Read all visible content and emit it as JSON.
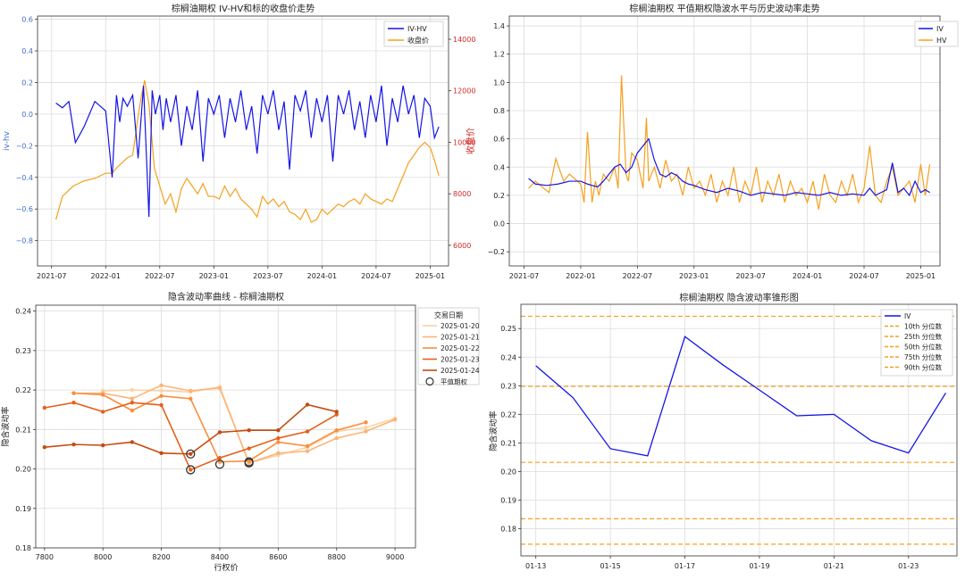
{
  "colors": {
    "iv_hv": "#1414e6",
    "close": "#f5a01e",
    "iv": "#1414e6",
    "hv": "#f5a01e",
    "left_axis": "#3c6ec8",
    "right_axis": "#d22828",
    "grid": "#dcdcdc",
    "spine": "#333333",
    "cone": "#f5a01e",
    "dates": [
      "#fdd2a5",
      "#fdb477",
      "#fb8d3c",
      "#e5601b",
      "#c44a0f"
    ]
  },
  "chart_data": [
    {
      "type": "line",
      "title": "棕榈油期权 IV-HV和标的收盘价走势",
      "xlabel": "",
      "ylabel": "iv-hv",
      "ylabel_right": "收盘价",
      "x_ticks": [
        "2021-07",
        "2022-01",
        "2022-07",
        "2023-01",
        "2023-07",
        "2024-01",
        "2024-07",
        "2025-01"
      ],
      "y_ticks_left": [
        "0.6",
        "0.4",
        "0.2",
        "0.0",
        "−0.2",
        "−0.4",
        "−0.6",
        "−0.8"
      ],
      "y_ticks_right": [
        "14000",
        "12000",
        "10000",
        "8000",
        "6000"
      ],
      "ylim_left": [
        -0.96,
        0.62
      ],
      "ylim_right": [
        5200,
        14900
      ],
      "legend": [
        "IV-HV",
        "收盘价"
      ],
      "series": [
        {
          "name": "IV-HV",
          "axis": "left",
          "x": [
            2021.54,
            2021.6,
            2021.66,
            2021.72,
            2021.8,
            2021.9,
            2022.0,
            2022.06,
            2022.1,
            2022.13,
            2022.16,
            2022.2,
            2022.25,
            2022.3,
            2022.35,
            2022.4,
            2022.43,
            2022.46,
            2022.5,
            2022.53,
            2022.56,
            2022.6,
            2022.65,
            2022.7,
            2022.75,
            2022.8,
            2022.85,
            2022.9,
            2022.95,
            2023.0,
            2023.05,
            2023.1,
            2023.15,
            2023.2,
            2023.25,
            2023.3,
            2023.35,
            2023.4,
            2023.45,
            2023.5,
            2023.55,
            2023.6,
            2023.65,
            2023.7,
            2023.75,
            2023.8,
            2023.85,
            2023.9,
            2023.95,
            2024.0,
            2024.05,
            2024.1,
            2024.15,
            2024.2,
            2024.25,
            2024.3,
            2024.35,
            2024.4,
            2024.45,
            2024.5,
            2024.55,
            2024.6,
            2024.65,
            2024.7,
            2024.75,
            2024.8,
            2024.85,
            2024.9,
            2024.95,
            2025.0,
            2025.04,
            2025.08
          ],
          "values": [
            0.07,
            0.04,
            0.08,
            -0.18,
            -0.08,
            0.08,
            0.02,
            -0.4,
            0.12,
            -0.05,
            0.1,
            0.05,
            0.12,
            -0.28,
            0.18,
            -0.65,
            0.15,
            0.0,
            0.12,
            -0.1,
            0.1,
            -0.05,
            0.12,
            -0.2,
            0.05,
            -0.1,
            0.15,
            -0.3,
            0.1,
            0.0,
            0.12,
            -0.15,
            0.1,
            -0.05,
            0.15,
            -0.1,
            0.05,
            -0.25,
            0.12,
            0.0,
            0.15,
            -0.1,
            0.08,
            -0.35,
            0.12,
            0.02,
            0.15,
            -0.15,
            0.1,
            -0.05,
            0.12,
            -0.3,
            0.12,
            0.0,
            0.15,
            -0.1,
            0.08,
            -0.15,
            0.12,
            -0.05,
            0.18,
            -0.2,
            0.1,
            -0.05,
            0.18,
            0.0,
            0.12,
            -0.15,
            0.1,
            0.05,
            -0.15,
            -0.08
          ]
        },
        {
          "name": "收盘价",
          "axis": "right",
          "x": [
            2021.54,
            2021.6,
            2021.7,
            2021.8,
            2021.9,
            2022.0,
            2022.06,
            2022.1,
            2022.15,
            2022.2,
            2022.25,
            2022.3,
            2022.33,
            2022.36,
            2022.4,
            2022.45,
            2022.5,
            2022.55,
            2022.6,
            2022.65,
            2022.7,
            2022.75,
            2022.8,
            2022.85,
            2022.9,
            2022.95,
            2023.0,
            2023.05,
            2023.1,
            2023.15,
            2023.2,
            2023.25,
            2023.3,
            2023.35,
            2023.4,
            2023.45,
            2023.5,
            2023.55,
            2023.6,
            2023.65,
            2023.7,
            2023.75,
            2023.8,
            2023.85,
            2023.9,
            2023.95,
            2024.0,
            2024.05,
            2024.1,
            2024.15,
            2024.2,
            2024.25,
            2024.3,
            2024.35,
            2024.4,
            2024.45,
            2024.5,
            2024.55,
            2024.6,
            2024.65,
            2024.7,
            2024.75,
            2024.8,
            2024.85,
            2024.9,
            2024.95,
            2025.0,
            2025.04,
            2025.08
          ],
          "values": [
            7000,
            7900,
            8300,
            8500,
            8600,
            8800,
            8800,
            9000,
            9200,
            9400,
            9500,
            11000,
            11800,
            12400,
            11500,
            9000,
            8300,
            7600,
            8000,
            7300,
            8200,
            8600,
            8300,
            8000,
            8400,
            7900,
            7900,
            7800,
            8300,
            7900,
            8200,
            7800,
            7600,
            7400,
            7100,
            7900,
            7600,
            7800,
            7500,
            7700,
            7300,
            7200,
            7000,
            7400,
            6900,
            7000,
            7400,
            7200,
            7400,
            7600,
            7500,
            7700,
            7800,
            7600,
            8000,
            7800,
            7700,
            7600,
            7800,
            7700,
            8200,
            8700,
            9200,
            9500,
            9800,
            10000,
            9800,
            9300,
            8700
          ]
        }
      ]
    },
    {
      "type": "line",
      "title": "棕榈油期权 平值期权隐波水平与历史波动率走势",
      "xlabel": "",
      "ylabel": "",
      "x_ticks": [
        "2021-07",
        "2022-01",
        "2022-07",
        "2023-01",
        "2023-07",
        "2024-01",
        "2024-07",
        "2025-01"
      ],
      "y_ticks": [
        "1.4",
        "1.2",
        "1.0",
        "0.8",
        "0.6",
        "0.4",
        "0.2",
        "0.0",
        "−0.2"
      ],
      "ylim": [
        -0.3,
        1.47
      ],
      "legend": [
        "IV",
        "HV"
      ],
      "series": [
        {
          "name": "IV",
          "x": [
            2021.54,
            2021.6,
            2021.7,
            2021.8,
            2021.9,
            2022.0,
            2022.06,
            2022.1,
            2022.15,
            2022.2,
            2022.25,
            2022.3,
            2022.35,
            2022.4,
            2022.45,
            2022.5,
            2022.55,
            2022.6,
            2022.65,
            2022.7,
            2022.75,
            2022.8,
            2022.85,
            2022.9,
            2022.95,
            2023.0,
            2023.1,
            2023.2,
            2023.3,
            2023.4,
            2023.5,
            2023.6,
            2023.7,
            2023.8,
            2023.9,
            2024.0,
            2024.1,
            2024.2,
            2024.3,
            2024.4,
            2024.5,
            2024.55,
            2024.6,
            2024.65,
            2024.7,
            2024.75,
            2024.8,
            2024.85,
            2024.9,
            2024.95,
            2025.0,
            2025.04,
            2025.08
          ],
          "values": [
            0.32,
            0.28,
            0.27,
            0.28,
            0.3,
            0.3,
            0.28,
            0.27,
            0.26,
            0.3,
            0.35,
            0.4,
            0.42,
            0.36,
            0.4,
            0.5,
            0.55,
            0.6,
            0.45,
            0.35,
            0.33,
            0.36,
            0.34,
            0.3,
            0.28,
            0.27,
            0.24,
            0.22,
            0.25,
            0.23,
            0.2,
            0.22,
            0.21,
            0.2,
            0.22,
            0.21,
            0.2,
            0.22,
            0.2,
            0.21,
            0.2,
            0.25,
            0.2,
            0.22,
            0.24,
            0.43,
            0.22,
            0.25,
            0.2,
            0.3,
            0.22,
            0.24,
            0.22
          ]
        },
        {
          "name": "HV",
          "x": [
            2021.54,
            2021.6,
            2021.66,
            2021.72,
            2021.78,
            2021.85,
            2021.9,
            2022.0,
            2022.03,
            2022.06,
            2022.1,
            2022.13,
            2022.16,
            2022.2,
            2022.25,
            2022.3,
            2022.33,
            2022.36,
            2022.4,
            2022.42,
            2022.45,
            2022.5,
            2022.55,
            2022.58,
            2022.6,
            2022.65,
            2022.7,
            2022.75,
            2022.8,
            2022.85,
            2022.9,
            2022.95,
            2023.0,
            2023.05,
            2023.1,
            2023.15,
            2023.2,
            2023.25,
            2023.3,
            2023.35,
            2023.4,
            2023.45,
            2023.5,
            2023.55,
            2023.6,
            2023.65,
            2023.7,
            2023.75,
            2023.8,
            2023.85,
            2023.9,
            2023.95,
            2024.0,
            2024.05,
            2024.1,
            2024.15,
            2024.2,
            2024.25,
            2024.3,
            2024.35,
            2024.4,
            2024.45,
            2024.5,
            2024.55,
            2024.6,
            2024.65,
            2024.7,
            2024.75,
            2024.8,
            2024.85,
            2024.9,
            2024.95,
            2025.0,
            2025.04,
            2025.08
          ],
          "values": [
            0.25,
            0.3,
            0.26,
            0.22,
            0.46,
            0.3,
            0.35,
            0.28,
            0.15,
            0.65,
            0.15,
            0.3,
            0.2,
            0.35,
            0.3,
            0.4,
            0.25,
            1.05,
            0.35,
            0.3,
            0.5,
            0.45,
            0.25,
            0.75,
            0.3,
            0.4,
            0.25,
            0.45,
            0.3,
            0.35,
            0.2,
            0.4,
            0.25,
            0.3,
            0.2,
            0.35,
            0.15,
            0.3,
            0.2,
            0.4,
            0.15,
            0.3,
            0.2,
            0.4,
            0.15,
            0.3,
            0.2,
            0.35,
            0.15,
            0.3,
            0.2,
            0.25,
            0.15,
            0.3,
            0.1,
            0.35,
            0.2,
            0.15,
            0.3,
            0.2,
            0.35,
            0.15,
            0.25,
            0.55,
            0.2,
            0.15,
            0.3,
            0.4,
            0.2,
            0.25,
            0.3,
            0.15,
            0.42,
            0.2,
            0.42
          ]
        }
      ]
    },
    {
      "type": "line",
      "title": "隐含波动率曲线 - 棕榈油期权",
      "xlabel": "行权价",
      "ylabel": "隐含波动率",
      "x_ticks": [
        "7800",
        "8000",
        "8200",
        "8400",
        "8600",
        "8800",
        "9000"
      ],
      "y_ticks": [
        "0.24",
        "0.23",
        "0.22",
        "0.21",
        "0.20",
        "0.19",
        "0.18"
      ],
      "xlim": [
        7770,
        9070
      ],
      "ylim": [
        0.18,
        0.2415
      ],
      "legend_title": "交易日期",
      "legend": [
        "2025-01-20",
        "2025-01-21",
        "2025-01-22",
        "2025-01-23",
        "2025-01-24",
        "平值期权"
      ],
      "series": [
        {
          "name": "2025-01-20",
          "x": [
            8000,
            8100,
            8200,
            8300,
            8400,
            8500,
            8600,
            8700,
            8800,
            8900,
            9000
          ],
          "values": [
            0.2198,
            0.22,
            0.2198,
            0.2195,
            0.2208,
            0.2015,
            0.2035,
            0.2055,
            0.2095,
            0.2105,
            0.2128
          ]
        },
        {
          "name": "2025-01-21",
          "x": [
            7900,
            8000,
            8100,
            8200,
            8300,
            8400,
            8500,
            8600,
            8700,
            8800,
            8900,
            9000
          ],
          "values": [
            0.2192,
            0.2192,
            0.2178,
            0.2212,
            0.2198,
            0.2205,
            0.2015,
            0.204,
            0.2045,
            0.2078,
            0.2095,
            0.2125
          ]
        },
        {
          "name": "2025-01-22",
          "x": [
            7900,
            8000,
            8100,
            8200,
            8300,
            8400,
            8500,
            8600,
            8700,
            8800,
            8900
          ],
          "values": [
            0.2192,
            0.2188,
            0.2148,
            0.2185,
            0.2178,
            0.2018,
            0.202,
            0.2068,
            0.2058,
            0.2098,
            0.2118
          ]
        },
        {
          "name": "2025-01-23",
          "x": [
            7800,
            7900,
            8000,
            8100,
            8200,
            8300,
            8400,
            8500,
            8600,
            8700,
            8800
          ],
          "values": [
            0.2155,
            0.2168,
            0.2145,
            0.2168,
            0.2162,
            0.1998,
            0.2028,
            0.2052,
            0.2078,
            0.2095,
            0.2138
          ]
        },
        {
          "name": "2025-01-24",
          "x": [
            7800,
            7900,
            8000,
            8100,
            8200,
            8300,
            8400,
            8500,
            8600,
            8700,
            8800
          ],
          "values": [
            0.2055,
            0.2062,
            0.206,
            0.2068,
            0.204,
            0.2038,
            0.2093,
            0.2098,
            0.2098,
            0.2163,
            0.2145
          ]
        }
      ],
      "atm_points": {
        "x": [
          8300,
          8300,
          8400,
          8500,
          8500
        ],
        "values": [
          0.2038,
          0.1998,
          0.2012,
          0.2018,
          0.2015
        ]
      }
    },
    {
      "type": "line",
      "title": "棕榈油期权 隐含波动率锥形图",
      "xlabel": "",
      "ylabel": "隐含波动率",
      "x_ticks": [
        "01-13",
        "01-15",
        "01-17",
        "01-19",
        "01-21",
        "01-23"
      ],
      "y_ticks": [
        "0.25",
        "0.24",
        "0.23",
        "0.22",
        "0.21",
        "0.20",
        "0.19",
        "0.18"
      ],
      "xlim": [
        12.6,
        24.3
      ],
      "ylim": [
        0.1705,
        0.2585
      ],
      "legend": [
        "IV",
        "10th 分位数",
        "25th 分位数",
        "50th 分位数",
        "75th 分位数",
        "90th 分位数"
      ],
      "series": [
        {
          "name": "IV",
          "x": [
            13,
            14,
            15,
            16,
            17,
            18,
            19,
            20,
            21,
            22,
            23,
            24
          ],
          "values": [
            0.237,
            0.2258,
            0.208,
            0.2055,
            0.2472,
            0.2375,
            0.2285,
            0.2195,
            0.22,
            0.2108,
            0.2065,
            0.2275
          ]
        }
      ],
      "percentiles": [
        0.2543,
        0.2298,
        0.2032,
        0.1835,
        0.1746
      ]
    }
  ]
}
